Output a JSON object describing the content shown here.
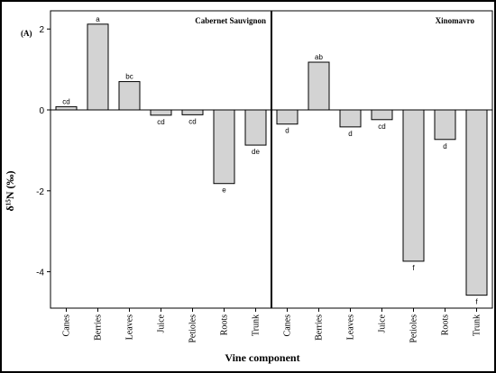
{
  "chart_data": {
    "type": "bar",
    "panel_label": "(A)",
    "ylabel": "δ¹⁵N (‰)",
    "xlabel": "Vine component",
    "ylim": [
      -4.5,
      2.2
    ],
    "yticks": [
      2,
      0,
      -2,
      -4
    ],
    "grid": false,
    "bar_color": "#d3d3d3",
    "panels": [
      {
        "title": "Cabernet Sauvignon",
        "categories": [
          "Canes",
          "Berries",
          "Leaves",
          "Juice",
          "Petioles",
          "Roots",
          "Trunk"
        ],
        "values": [
          0.08,
          2.12,
          0.7,
          -0.13,
          -0.12,
          -1.82,
          -0.87
        ],
        "labels": [
          "cd",
          "a",
          "bc",
          "cd",
          "cd",
          "e",
          "de"
        ]
      },
      {
        "title": "Xinomavro",
        "categories": [
          "Canes",
          "Berries",
          "Leaves",
          "Juice",
          "Petioles",
          "Roots",
          "Trunk"
        ],
        "values": [
          -0.35,
          1.18,
          -0.42,
          -0.24,
          -3.74,
          -0.73,
          -4.58
        ],
        "labels": [
          "d",
          "ab",
          "d",
          "cd",
          "f",
          "d",
          "f"
        ]
      }
    ]
  }
}
